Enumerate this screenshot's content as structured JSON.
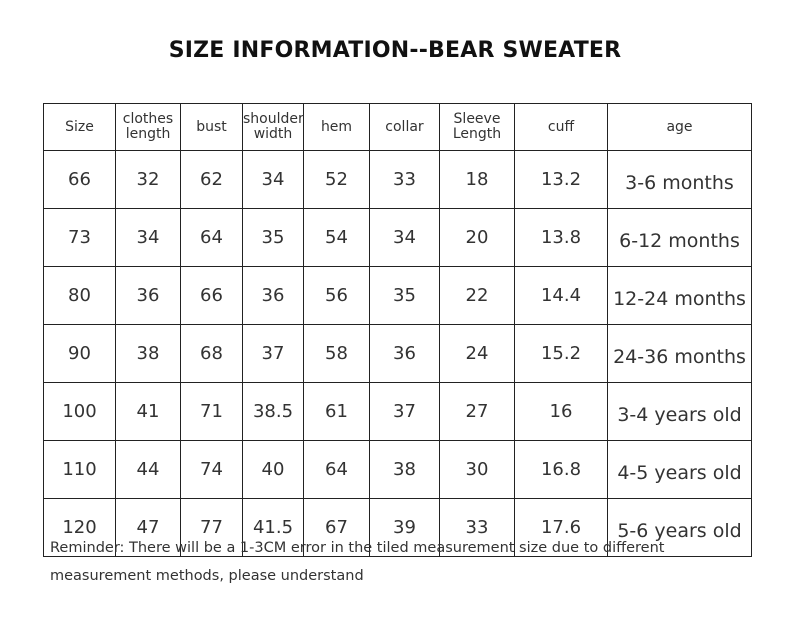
{
  "title": "SIZE INFORMATION--BEAR SWEATER",
  "table": {
    "headers": [
      {
        "line1": "Size",
        "line2": ""
      },
      {
        "line1": "clothes",
        "line2": "length"
      },
      {
        "line1": "bust",
        "line2": ""
      },
      {
        "line1": "shoulder",
        "line2": "width"
      },
      {
        "line1": "hem",
        "line2": ""
      },
      {
        "line1": "collar",
        "line2": ""
      },
      {
        "line1": "Sleeve",
        "line2": "Length"
      },
      {
        "line1": "cuff",
        "line2": ""
      },
      {
        "line1": "age",
        "line2": ""
      }
    ],
    "rows": [
      [
        "66",
        "32",
        "62",
        "34",
        "52",
        "33",
        "18",
        "13.2",
        "3-6 months"
      ],
      [
        "73",
        "34",
        "64",
        "35",
        "54",
        "34",
        "20",
        "13.8",
        "6-12 months"
      ],
      [
        "80",
        "36",
        "66",
        "36",
        "56",
        "35",
        "22",
        "14.4",
        "12-24 months"
      ],
      [
        "90",
        "38",
        "68",
        "37",
        "58",
        "36",
        "24",
        "15.2",
        "24-36 months"
      ],
      [
        "100",
        "41",
        "71",
        "38.5",
        "61",
        "37",
        "27",
        "16",
        "3-4 years old"
      ],
      [
        "110",
        "44",
        "74",
        "40",
        "64",
        "38",
        "30",
        "16.8",
        "4-5 years old"
      ],
      [
        "120",
        "47",
        "77",
        "41.5",
        "67",
        "39",
        "33",
        "17.6",
        "5-6 years old"
      ]
    ]
  },
  "reminder": "Reminder: There will be a 1-3CM error in the tiled measurement size due to different measurement methods, please understand"
}
